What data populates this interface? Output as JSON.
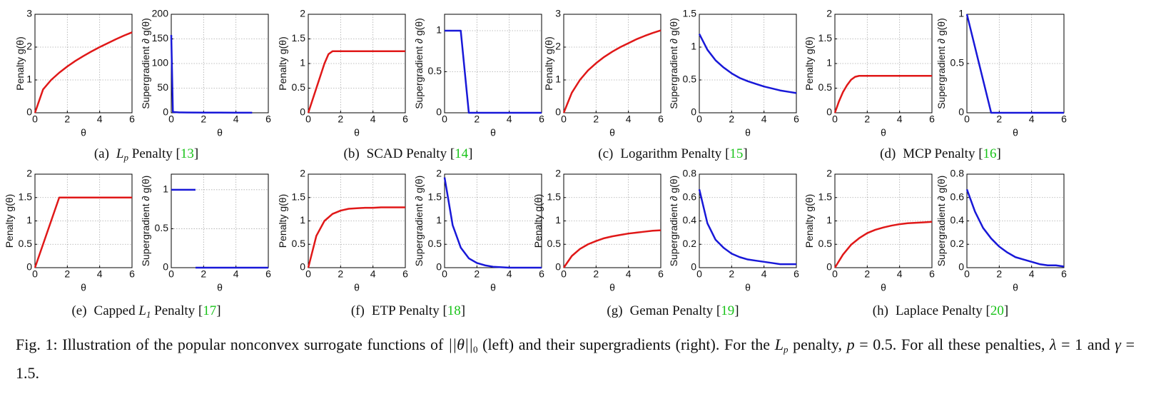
{
  "chart_data": [
    {
      "type": "line",
      "ylabel": "Penalty g(θ)",
      "xlabel": "θ",
      "x": [
        0,
        0.5,
        1,
        1.5,
        2,
        2.5,
        3,
        3.5,
        4,
        4.5,
        5,
        5.5,
        6
      ],
      "values": [
        0,
        0.71,
        1,
        1.22,
        1.41,
        1.58,
        1.73,
        1.87,
        2,
        2.12,
        2.24,
        2.35,
        2.45
      ],
      "color": "#e01818",
      "xlim": [
        0,
        6
      ],
      "xticks": [
        0,
        2,
        4,
        6
      ],
      "ylim": [
        0,
        3
      ],
      "yticks": [
        0,
        1,
        2,
        3
      ],
      "grid": true
    },
    {
      "type": "line",
      "ylabel": "Supergradient ∂ g(θ)",
      "xlabel": "θ",
      "x": [
        1e-05,
        0.1,
        0.5,
        1,
        2,
        3,
        4,
        5
      ],
      "values": [
        158,
        1.58,
        0.71,
        0.5,
        0.35,
        0.29,
        0.25,
        0.22
      ],
      "color": "#1818d8",
      "xlim": [
        0,
        6
      ],
      "xticks": [
        0,
        2,
        4,
        6
      ],
      "ylim": [
        0,
        200
      ],
      "yticks": [
        0,
        50,
        100,
        150,
        200
      ],
      "grid": true
    },
    {
      "type": "line",
      "ylabel": "Penalty g(θ)",
      "xlabel": "θ",
      "x": [
        0,
        0.5,
        1,
        1.25,
        1.5,
        2,
        3,
        4,
        5,
        6
      ],
      "values": [
        0,
        0.5,
        1,
        1.19,
        1.25,
        1.25,
        1.25,
        1.25,
        1.25,
        1.25
      ],
      "color": "#e01818",
      "xlim": [
        0,
        6
      ],
      "xticks": [
        0,
        2,
        4,
        6
      ],
      "ylim": [
        0,
        2
      ],
      "yticks": [
        0,
        0.5,
        1,
        1.5,
        2
      ],
      "grid": true
    },
    {
      "type": "line",
      "ylabel": "Supergradient ∂ g(θ)",
      "xlabel": "θ",
      "x": [
        0,
        1,
        1.5,
        2,
        3,
        4,
        5,
        6
      ],
      "values": [
        1,
        1,
        0,
        0,
        0,
        0,
        0,
        0
      ],
      "color": "#1818d8",
      "xlim": [
        0,
        6
      ],
      "xticks": [
        0,
        2,
        4,
        6
      ],
      "ylim": [
        0,
        1.2
      ],
      "yticks": [
        0,
        0.5,
        1
      ],
      "grid": true
    },
    {
      "type": "line",
      "ylabel": "Penalty g(θ)",
      "xlabel": "θ",
      "x": [
        0,
        0.5,
        1,
        1.5,
        2,
        2.5,
        3,
        3.5,
        4,
        4.5,
        5,
        5.5,
        6
      ],
      "values": [
        0,
        0.61,
        1,
        1.29,
        1.51,
        1.7,
        1.86,
        2,
        2.12,
        2.24,
        2.34,
        2.43,
        2.51
      ],
      "color": "#e01818",
      "xlim": [
        0,
        6
      ],
      "xticks": [
        0,
        2,
        4,
        6
      ],
      "ylim": [
        0,
        3
      ],
      "yticks": [
        0,
        1,
        2,
        3
      ],
      "grid": true
    },
    {
      "type": "line",
      "ylabel": "Supergradient ∂ g(θ)",
      "xlabel": "θ",
      "x": [
        0,
        0.5,
        1,
        1.5,
        2,
        2.5,
        3,
        3.5,
        4,
        4.5,
        5,
        5.5,
        6
      ],
      "values": [
        1.2,
        0.96,
        0.8,
        0.69,
        0.6,
        0.53,
        0.48,
        0.44,
        0.4,
        0.37,
        0.34,
        0.32,
        0.3
      ],
      "color": "#1818d8",
      "xlim": [
        0,
        6
      ],
      "xticks": [
        0,
        2,
        4,
        6
      ],
      "ylim": [
        0,
        1.5
      ],
      "yticks": [
        0,
        0.5,
        1,
        1.5
      ],
      "grid": true
    },
    {
      "type": "line",
      "ylabel": "Penalty g(θ)",
      "xlabel": "θ",
      "x": [
        0,
        0.25,
        0.5,
        0.75,
        1,
        1.25,
        1.5,
        2,
        3,
        4,
        5,
        6
      ],
      "values": [
        0,
        0.23,
        0.42,
        0.56,
        0.67,
        0.73,
        0.75,
        0.75,
        0.75,
        0.75,
        0.75,
        0.75
      ],
      "color": "#e01818",
      "xlim": [
        0,
        6
      ],
      "xticks": [
        0,
        2,
        4,
        6
      ],
      "ylim": [
        0,
        2
      ],
      "yticks": [
        0,
        0.5,
        1,
        1.5,
        2
      ],
      "grid": true
    },
    {
      "type": "line",
      "ylabel": "Supergradient ∂ g(θ)",
      "xlabel": "θ",
      "x": [
        0,
        1.5,
        2,
        3,
        4,
        5,
        6
      ],
      "values": [
        1,
        0,
        0,
        0,
        0,
        0,
        0
      ],
      "color": "#1818d8",
      "xlim": [
        0,
        6
      ],
      "xticks": [
        0,
        2,
        4,
        6
      ],
      "ylim": [
        0,
        1
      ],
      "yticks": [
        0,
        0.5,
        1
      ],
      "grid": true
    },
    {
      "type": "line",
      "ylabel": "Penalty g(θ)",
      "xlabel": "θ",
      "x": [
        0,
        1.5,
        2,
        3,
        4,
        5,
        6
      ],
      "values": [
        0,
        1.5,
        1.5,
        1.5,
        1.5,
        1.5,
        1.5
      ],
      "color": "#e01818",
      "xlim": [
        0,
        6
      ],
      "xticks": [
        0,
        2,
        4,
        6
      ],
      "ylim": [
        0,
        2
      ],
      "yticks": [
        0,
        0.5,
        1,
        1.5,
        2
      ],
      "grid": true
    },
    {
      "type": "line",
      "ylabel": "Supergradient ∂ g(θ)",
      "xlabel": "θ",
      "x": [
        0,
        1.5,
        1.5,
        1.5,
        2,
        3,
        4,
        5,
        6
      ],
      "values": [
        1,
        1,
        null,
        0,
        0,
        0,
        0,
        0,
        0
      ],
      "color": "#1818d8",
      "xlim": [
        0,
        6
      ],
      "xticks": [
        0,
        2,
        4,
        6
      ],
      "ylim": [
        0,
        1.2
      ],
      "yticks": [
        0,
        0.5,
        1
      ],
      "grid": true
    },
    {
      "type": "line",
      "ylabel": "Penalty g(θ)",
      "xlabel": "θ",
      "x": [
        0,
        0.5,
        1,
        1.5,
        2,
        2.5,
        3,
        3.5,
        4,
        4.5,
        5,
        5.5,
        6
      ],
      "values": [
        0,
        0.68,
        1,
        1.15,
        1.22,
        1.26,
        1.27,
        1.28,
        1.28,
        1.29,
        1.29,
        1.29,
        1.29
      ],
      "color": "#e01818",
      "xlim": [
        0,
        6
      ],
      "xticks": [
        0,
        2,
        4,
        6
      ],
      "ylim": [
        0,
        2
      ],
      "yticks": [
        0,
        0.5,
        1,
        1.5,
        2
      ],
      "grid": true
    },
    {
      "type": "line",
      "ylabel": "Supergradient ∂ g(θ)",
      "xlabel": "θ",
      "x": [
        0,
        0.5,
        1,
        1.5,
        2,
        2.5,
        3,
        3.5,
        4,
        4.5,
        5,
        5.5,
        6
      ],
      "values": [
        1.93,
        0.91,
        0.43,
        0.2,
        0.1,
        0.05,
        0.02,
        0.01,
        0,
        0,
        0,
        0,
        0
      ],
      "color": "#1818d8",
      "xlim": [
        0,
        6
      ],
      "xticks": [
        0,
        2,
        4,
        6
      ],
      "ylim": [
        0,
        2
      ],
      "yticks": [
        0,
        0.5,
        1,
        1.5,
        2
      ],
      "grid": true
    },
    {
      "type": "line",
      "ylabel": "Penalty g(θ)",
      "xlabel": "θ",
      "x": [
        0,
        0.5,
        1,
        1.5,
        2,
        2.5,
        3,
        3.5,
        4,
        4.5,
        5,
        5.5,
        6
      ],
      "values": [
        0,
        0.25,
        0.4,
        0.5,
        0.57,
        0.63,
        0.67,
        0.7,
        0.73,
        0.75,
        0.77,
        0.79,
        0.8
      ],
      "color": "#e01818",
      "xlim": [
        0,
        6
      ],
      "xticks": [
        0,
        2,
        4,
        6
      ],
      "ylim": [
        0,
        2
      ],
      "yticks": [
        0,
        0.5,
        1,
        1.5,
        2
      ],
      "grid": true
    },
    {
      "type": "line",
      "ylabel": "Supergradient ∂ g(θ)",
      "xlabel": "θ",
      "x": [
        0,
        0.5,
        1,
        1.5,
        2,
        2.5,
        3,
        3.5,
        4,
        4.5,
        5,
        5.5,
        6
      ],
      "values": [
        0.67,
        0.38,
        0.24,
        0.17,
        0.12,
        0.09,
        0.07,
        0.06,
        0.05,
        0.04,
        0.03,
        0.03,
        0.03
      ],
      "color": "#1818d8",
      "xlim": [
        0,
        6
      ],
      "xticks": [
        0,
        2,
        4,
        6
      ],
      "ylim": [
        0,
        0.8
      ],
      "yticks": [
        0,
        0.2,
        0.4,
        0.6,
        0.8
      ],
      "grid": true
    },
    {
      "type": "line",
      "ylabel": "Penalty g(θ)",
      "xlabel": "θ",
      "x": [
        0,
        0.5,
        1,
        1.5,
        2,
        2.5,
        3,
        3.5,
        4,
        4.5,
        5,
        5.5,
        6
      ],
      "values": [
        0,
        0.28,
        0.49,
        0.63,
        0.74,
        0.81,
        0.86,
        0.9,
        0.93,
        0.95,
        0.96,
        0.97,
        0.98
      ],
      "color": "#e01818",
      "xlim": [
        0,
        6
      ],
      "xticks": [
        0,
        2,
        4,
        6
      ],
      "ylim": [
        0,
        2
      ],
      "yticks": [
        0,
        0.5,
        1,
        1.5,
        2
      ],
      "grid": true
    },
    {
      "type": "line",
      "ylabel": "Supergradient ∂ g(θ)",
      "xlabel": "θ",
      "x": [
        0,
        0.5,
        1,
        1.5,
        2,
        2.5,
        3,
        3.5,
        4,
        4.5,
        5,
        5.5,
        6
      ],
      "values": [
        0.67,
        0.48,
        0.34,
        0.25,
        0.18,
        0.13,
        0.09,
        0.07,
        0.05,
        0.03,
        0.02,
        0.02,
        0.01
      ],
      "color": "#1818d8",
      "xlim": [
        0,
        6
      ],
      "xticks": [
        0,
        2,
        4,
        6
      ],
      "ylim": [
        0,
        0.8
      ],
      "yticks": [
        0,
        0.2,
        0.4,
        0.6,
        0.8
      ],
      "grid": true
    }
  ],
  "subcaptions": [
    {
      "label": "(a)",
      "math": "L",
      "sub": "p",
      "text": "Penalty",
      "ref": "13"
    },
    {
      "label": "(b)",
      "text": "SCAD Penalty",
      "ref": "14"
    },
    {
      "label": "(c)",
      "text": "Logarithm Penalty",
      "ref": "15"
    },
    {
      "label": "(d)",
      "text": "MCP Penalty",
      "ref": "16"
    },
    {
      "label": "(e)",
      "pre": "Capped",
      "math": "L",
      "sub": "1",
      "text": "Penalty",
      "ref": "17"
    },
    {
      "label": "(f)",
      "text": "ETP Penalty",
      "ref": "18"
    },
    {
      "label": "(g)",
      "text": "Geman Penalty",
      "ref": "19"
    },
    {
      "label": "(h)",
      "text": "Laplace Penalty",
      "ref": "20"
    }
  ],
  "caption": [
    "Fig. 1: Illustration of the popular nonconvex surrogate functions of ",
    "||θ||",
    "0",
    " (left) and their supergradients (right). For the ",
    "L",
    "p",
    " penalty, ",
    "p",
    " = 0.5. For all these penalties, ",
    "λ",
    " = 1 and ",
    "γ",
    " = 1.5."
  ]
}
